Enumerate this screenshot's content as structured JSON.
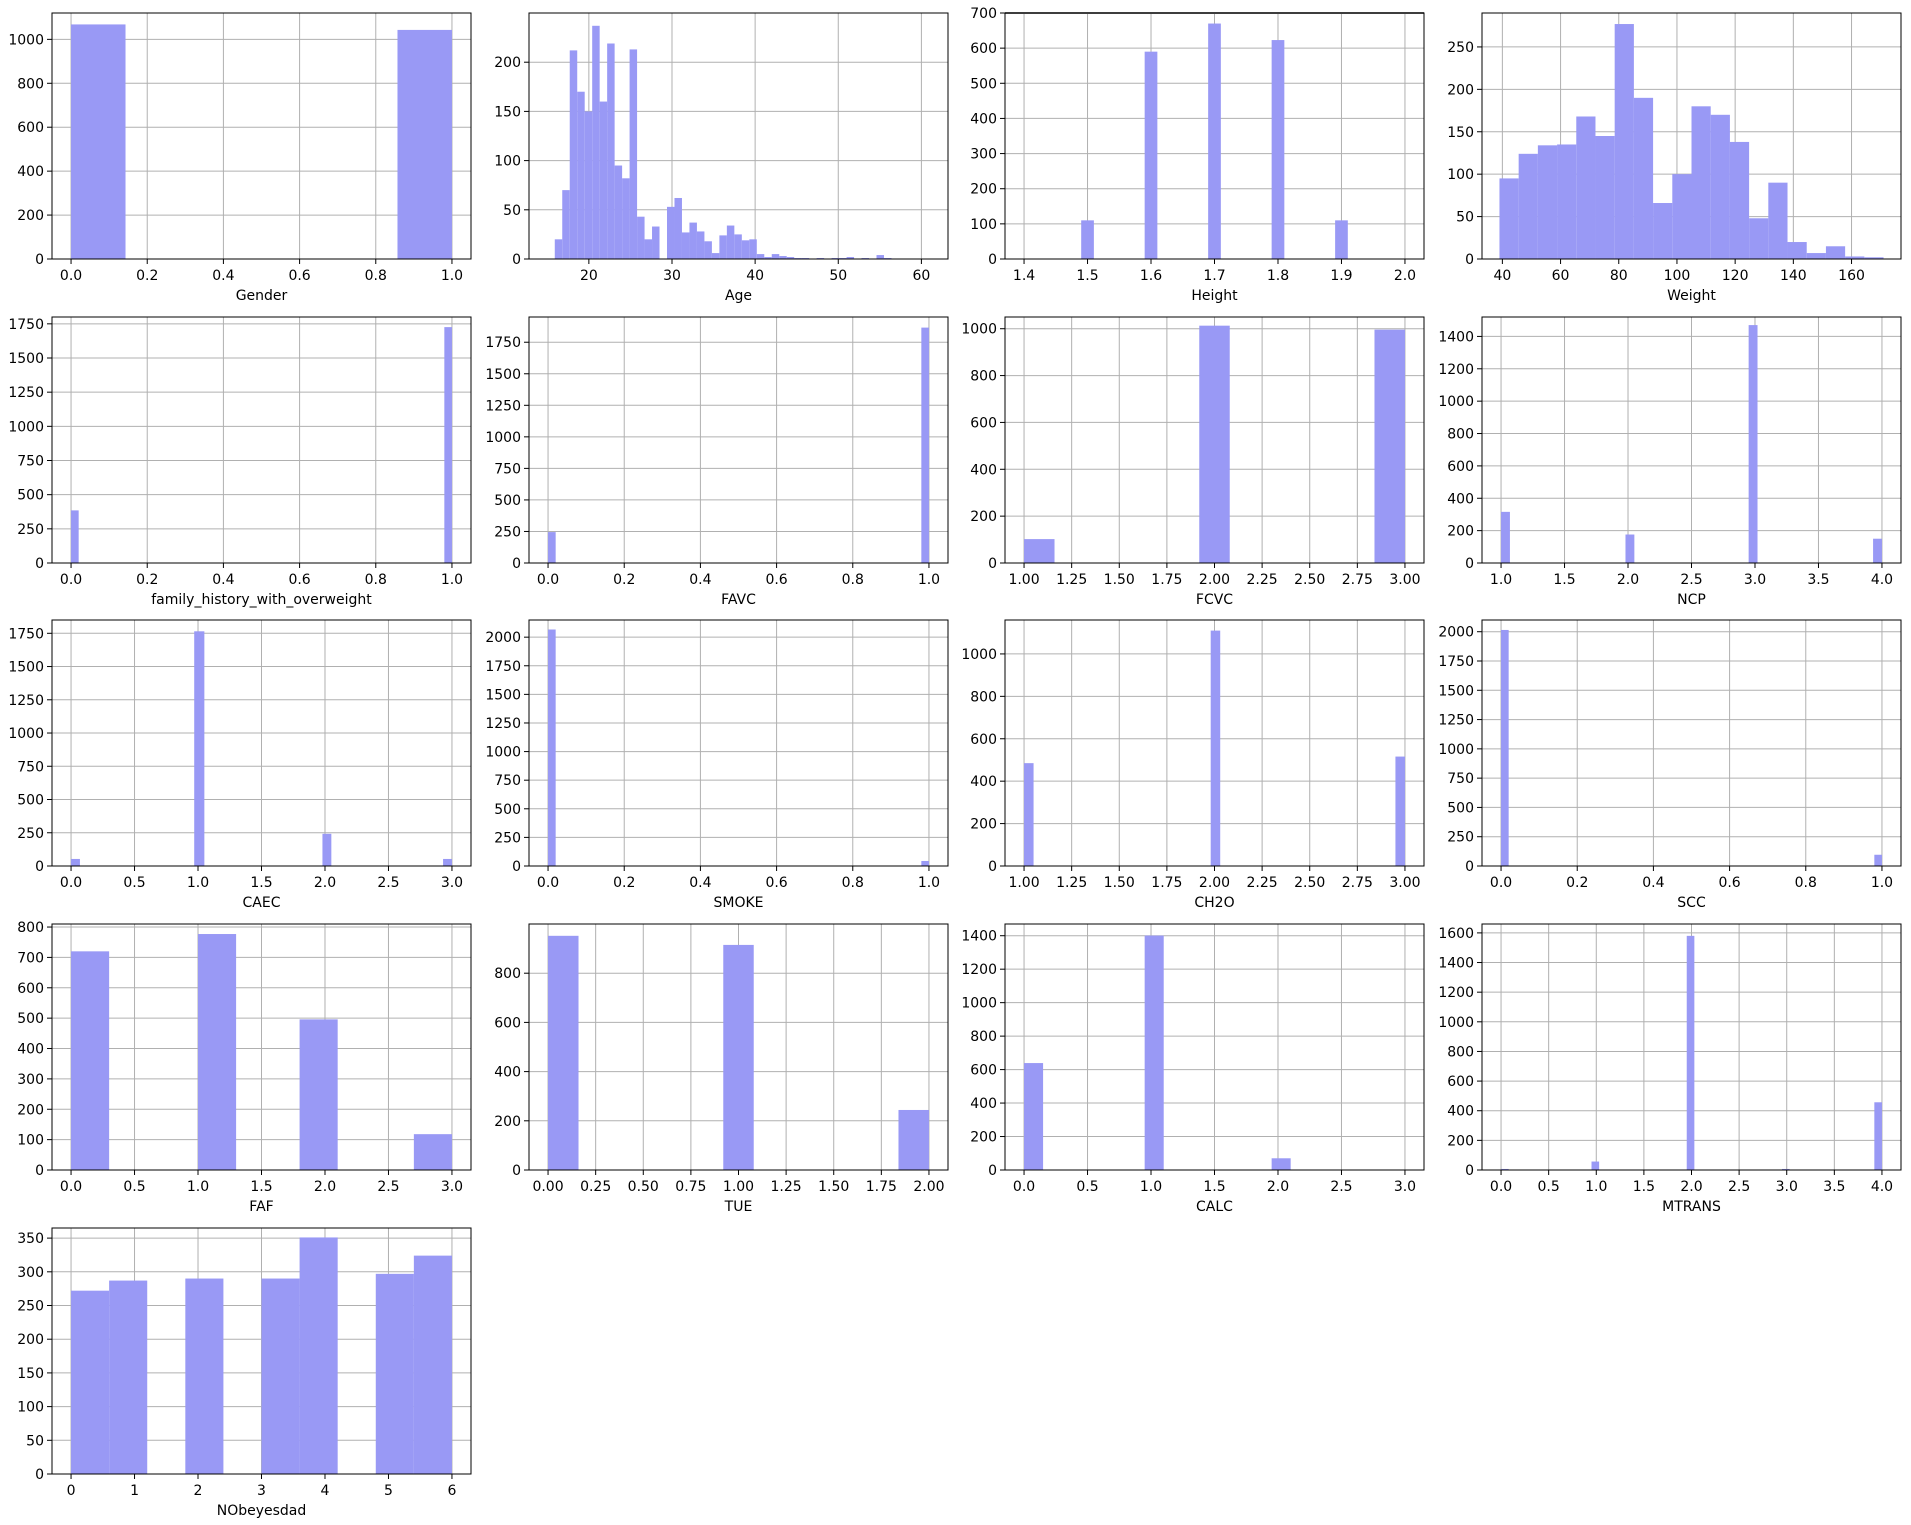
{
  "colors": {
    "bar": "#9999f5",
    "grid": "#b0b0b0"
  },
  "chart_data": [
    {
      "type": "bar",
      "xlabel": "Gender",
      "xlim": [
        -0.05,
        1.05
      ],
      "ylim": [
        0,
        1120
      ],
      "xticks": [
        0,
        0.2,
        0.4,
        0.6,
        0.8,
        1.0
      ],
      "xtick_labels": [
        "0.0",
        "0.2",
        "0.4",
        "0.6",
        "0.8",
        "1.0"
      ],
      "yticks": [
        0,
        200,
        400,
        600,
        800,
        1000
      ],
      "ytick_labels": [
        "0",
        "200",
        "400",
        "600",
        "800",
        "1000"
      ],
      "bins": [
        [
          0.0,
          0.143,
          1068
        ],
        [
          0.857,
          1.0,
          1043
        ]
      ]
    },
    {
      "type": "bar",
      "xlabel": "Age",
      "xlim": [
        12.8,
        63.2
      ],
      "ylim": [
        0,
        250
      ],
      "xticks": [
        20,
        30,
        40,
        50,
        60
      ],
      "xtick_labels": [
        "20",
        "30",
        "40",
        "50",
        "60"
      ],
      "yticks": [
        0,
        50,
        100,
        150,
        200
      ],
      "ytick_labels": [
        "0",
        "50",
        "100",
        "150",
        "200"
      ],
      "bins": [
        [
          15.9,
          16.8,
          20
        ],
        [
          16.8,
          17.7,
          70
        ],
        [
          17.7,
          18.6,
          212
        ],
        [
          18.6,
          19.5,
          170
        ],
        [
          19.5,
          20.4,
          150
        ],
        [
          20.4,
          21.3,
          237
        ],
        [
          21.3,
          22.2,
          160
        ],
        [
          22.2,
          23.1,
          219
        ],
        [
          23.1,
          24.0,
          95
        ],
        [
          24.0,
          24.9,
          82
        ],
        [
          24.9,
          25.8,
          213
        ],
        [
          25.8,
          26.7,
          43
        ],
        [
          26.7,
          27.6,
          20
        ],
        [
          27.6,
          28.5,
          33
        ],
        [
          28.5,
          29.4,
          0
        ],
        [
          29.4,
          30.3,
          53
        ],
        [
          30.3,
          31.2,
          62
        ],
        [
          31.2,
          32.1,
          27
        ],
        [
          32.1,
          33.0,
          37
        ],
        [
          33.0,
          33.9,
          28
        ],
        [
          33.9,
          34.8,
          18
        ],
        [
          34.8,
          35.7,
          6
        ],
        [
          35.7,
          36.6,
          24
        ],
        [
          36.6,
          37.5,
          34
        ],
        [
          37.5,
          38.4,
          25
        ],
        [
          38.4,
          39.3,
          19
        ],
        [
          39.3,
          40.2,
          20
        ],
        [
          40.2,
          41.1,
          5
        ],
        [
          41.1,
          42.0,
          2
        ],
        [
          42.0,
          42.9,
          5
        ],
        [
          42.9,
          43.8,
          3
        ],
        [
          43.8,
          44.7,
          2
        ],
        [
          44.7,
          45.6,
          1
        ],
        [
          45.6,
          46.5,
          1
        ],
        [
          46.5,
          47.4,
          0
        ],
        [
          47.4,
          48.3,
          1
        ],
        [
          48.3,
          49.2,
          0
        ],
        [
          49.2,
          50.1,
          1
        ],
        [
          50.1,
          51.0,
          1
        ],
        [
          51.0,
          51.9,
          2
        ],
        [
          51.9,
          52.8,
          0
        ],
        [
          52.8,
          53.7,
          1
        ],
        [
          53.7,
          54.6,
          0
        ],
        [
          54.6,
          55.5,
          4
        ],
        [
          55.5,
          56.4,
          1
        ]
      ]
    },
    {
      "type": "bar",
      "xlabel": "Height",
      "xlim": [
        1.37,
        2.03
      ],
      "ylim": [
        0,
        700
      ],
      "xticks": [
        1.4,
        1.5,
        1.6,
        1.7,
        1.8,
        1.9,
        2.0
      ],
      "xtick_labels": [
        "1.4",
        "1.5",
        "1.6",
        "1.7",
        "1.8",
        "1.9",
        "2.0"
      ],
      "yticks": [
        0,
        100,
        200,
        300,
        400,
        500,
        600,
        700
      ],
      "ytick_labels": [
        "0",
        "100",
        "200",
        "300",
        "400",
        "500",
        "600",
        "700"
      ],
      "bins": [
        [
          1.49,
          1.51,
          110
        ],
        [
          1.59,
          1.61,
          590
        ],
        [
          1.69,
          1.71,
          670
        ],
        [
          1.79,
          1.81,
          623
        ],
        [
          1.89,
          1.91,
          110
        ]
      ],
      "top_line": 700
    },
    {
      "type": "bar",
      "xlabel": "Weight",
      "xlim": [
        33,
        177
      ],
      "ylim": [
        0,
        290
      ],
      "xticks": [
        40,
        60,
        80,
        100,
        120,
        140,
        160
      ],
      "xtick_labels": [
        "40",
        "60",
        "80",
        "100",
        "120",
        "140",
        "160"
      ],
      "yticks": [
        0,
        50,
        100,
        150,
        200,
        250
      ],
      "ytick_labels": [
        "0",
        "50",
        "100",
        "150",
        "200",
        "250"
      ],
      "bins": [
        [
          39,
          45.6,
          95
        ],
        [
          45.6,
          52.2,
          124
        ],
        [
          52.2,
          58.8,
          134
        ],
        [
          58.8,
          65.4,
          135
        ],
        [
          65.4,
          72.0,
          168
        ],
        [
          72.0,
          78.6,
          145
        ],
        [
          78.6,
          85.2,
          277
        ],
        [
          85.2,
          91.8,
          190
        ],
        [
          91.8,
          98.4,
          66
        ],
        [
          98.4,
          105.0,
          100
        ],
        [
          105.0,
          111.6,
          180
        ],
        [
          111.6,
          118.2,
          170
        ],
        [
          118.2,
          124.8,
          138
        ],
        [
          124.8,
          131.4,
          48
        ],
        [
          131.4,
          138.0,
          90
        ],
        [
          138.0,
          144.6,
          20
        ],
        [
          144.6,
          151.2,
          7
        ],
        [
          151.2,
          157.8,
          15
        ],
        [
          157.8,
          164.4,
          3
        ],
        [
          164.4,
          171.0,
          2
        ]
      ]
    },
    {
      "type": "bar",
      "xlabel": "family_history_with_overweight",
      "xlim": [
        -0.05,
        1.05
      ],
      "ylim": [
        0,
        1800
      ],
      "xticks": [
        0,
        0.2,
        0.4,
        0.6,
        0.8,
        1.0
      ],
      "xtick_labels": [
        "0.0",
        "0.2",
        "0.4",
        "0.6",
        "0.8",
        "1.0"
      ],
      "yticks": [
        0,
        250,
        500,
        750,
        1000,
        1250,
        1500,
        1750
      ],
      "ytick_labels": [
        "0",
        "250",
        "500",
        "750",
        "1000",
        "1250",
        "1500",
        "1750"
      ],
      "bins": [
        [
          0.0,
          0.02,
          385
        ],
        [
          0.98,
          1.0,
          1726
        ]
      ]
    },
    {
      "type": "bar",
      "xlabel": "FAVC",
      "xlim": [
        -0.05,
        1.05
      ],
      "ylim": [
        0,
        1950
      ],
      "xticks": [
        0,
        0.2,
        0.4,
        0.6,
        0.8,
        1.0
      ],
      "xtick_labels": [
        "0.0",
        "0.2",
        "0.4",
        "0.6",
        "0.8",
        "1.0"
      ],
      "yticks": [
        0,
        250,
        500,
        750,
        1000,
        1250,
        1500,
        1750
      ],
      "ytick_labels": [
        "0",
        "250",
        "500",
        "750",
        "1000",
        "1250",
        "1500",
        "1750"
      ],
      "bins": [
        [
          0.0,
          0.02,
          245
        ],
        [
          0.98,
          1.0,
          1866
        ]
      ]
    },
    {
      "type": "bar",
      "xlabel": "FCVC",
      "xlim": [
        0.9,
        3.1
      ],
      "ylim": [
        0,
        1050
      ],
      "xticks": [
        1.0,
        1.25,
        1.5,
        1.75,
        2.0,
        2.25,
        2.5,
        2.75,
        3.0
      ],
      "xtick_labels": [
        "1.00",
        "1.25",
        "1.50",
        "1.75",
        "2.00",
        "2.25",
        "2.50",
        "2.75",
        "3.00"
      ],
      "yticks": [
        0,
        200,
        400,
        600,
        800,
        1000
      ],
      "ytick_labels": [
        "0",
        "200",
        "400",
        "600",
        "800",
        "1000"
      ],
      "bins": [
        [
          1.0,
          1.16,
          102
        ],
        [
          1.92,
          2.08,
          1013
        ],
        [
          2.84,
          3.0,
          996
        ]
      ]
    },
    {
      "type": "bar",
      "xlabel": "NCP",
      "xlim": [
        0.85,
        4.15
      ],
      "ylim": [
        0,
        1520
      ],
      "xticks": [
        1.0,
        1.5,
        2.0,
        2.5,
        3.0,
        3.5,
        4.0
      ],
      "xtick_labels": [
        "1.0",
        "1.5",
        "2.0",
        "2.5",
        "3.0",
        "3.5",
        "4.0"
      ],
      "yticks": [
        0,
        200,
        400,
        600,
        800,
        1000,
        1200,
        1400
      ],
      "ytick_labels": [
        "0",
        "200",
        "400",
        "600",
        "800",
        "1000",
        "1200",
        "1400"
      ],
      "bins": [
        [
          1.0,
          1.07,
          316
        ],
        [
          1.98,
          2.05,
          176
        ],
        [
          2.95,
          3.02,
          1470
        ],
        [
          3.93,
          4.0,
          150
        ]
      ]
    },
    {
      "type": "bar",
      "xlabel": "CAEC",
      "xlim": [
        -0.15,
        3.15
      ],
      "ylim": [
        0,
        1850
      ],
      "xticks": [
        0,
        0.5,
        1.0,
        1.5,
        2.0,
        2.5,
        3.0
      ],
      "xtick_labels": [
        "0.0",
        "0.5",
        "1.0",
        "1.5",
        "2.0",
        "2.5",
        "3.0"
      ],
      "yticks": [
        0,
        250,
        500,
        750,
        1000,
        1250,
        1500,
        1750
      ],
      "ytick_labels": [
        "0",
        "250",
        "500",
        "750",
        "1000",
        "1250",
        "1500",
        "1750"
      ],
      "bins": [
        [
          0.0,
          0.07,
          53
        ],
        [
          0.97,
          1.05,
          1765
        ],
        [
          1.98,
          2.05,
          242
        ],
        [
          2.93,
          3.0,
          53
        ]
      ]
    },
    {
      "type": "bar",
      "xlabel": "SMOKE",
      "xlim": [
        -0.05,
        1.05
      ],
      "ylim": [
        0,
        2150
      ],
      "xticks": [
        0,
        0.2,
        0.4,
        0.6,
        0.8,
        1.0
      ],
      "xtick_labels": [
        "0.0",
        "0.2",
        "0.4",
        "0.6",
        "0.8",
        "1.0"
      ],
      "yticks": [
        0,
        250,
        500,
        750,
        1000,
        1250,
        1500,
        1750,
        2000
      ],
      "ytick_labels": [
        "0",
        "250",
        "500",
        "750",
        "1000",
        "1250",
        "1500",
        "1750",
        "2000"
      ],
      "bins": [
        [
          0.0,
          0.02,
          2067
        ],
        [
          0.98,
          1.0,
          44
        ]
      ]
    },
    {
      "type": "bar",
      "xlabel": "CH2O",
      "xlim": [
        0.9,
        3.1
      ],
      "ylim": [
        0,
        1160
      ],
      "xticks": [
        1.0,
        1.25,
        1.5,
        1.75,
        2.0,
        2.25,
        2.5,
        2.75,
        3.0
      ],
      "xtick_labels": [
        "1.00",
        "1.25",
        "1.50",
        "1.75",
        "2.00",
        "2.25",
        "2.50",
        "2.75",
        "3.00"
      ],
      "yticks": [
        0,
        200,
        400,
        600,
        800,
        1000
      ],
      "ytick_labels": [
        "0",
        "200",
        "400",
        "600",
        "800",
        "1000"
      ],
      "bins": [
        [
          1.0,
          1.05,
          485
        ],
        [
          1.98,
          2.03,
          1110
        ],
        [
          2.95,
          3.0,
          516
        ]
      ]
    },
    {
      "type": "bar",
      "xlabel": "SCC",
      "xlim": [
        -0.05,
        1.05
      ],
      "ylim": [
        0,
        2100
      ],
      "xticks": [
        0,
        0.2,
        0.4,
        0.6,
        0.8,
        1.0
      ],
      "xtick_labels": [
        "0.0",
        "0.2",
        "0.4",
        "0.6",
        "0.8",
        "1.0"
      ],
      "yticks": [
        0,
        250,
        500,
        750,
        1000,
        1250,
        1500,
        1750,
        2000
      ],
      "ytick_labels": [
        "0",
        "250",
        "500",
        "750",
        "1000",
        "1250",
        "1500",
        "1750",
        "2000"
      ],
      "bins": [
        [
          0.0,
          0.02,
          2015
        ],
        [
          0.98,
          1.0,
          96
        ]
      ]
    },
    {
      "type": "bar",
      "xlabel": "FAF",
      "xlim": [
        -0.15,
        3.15
      ],
      "ylim": [
        0,
        810
      ],
      "xticks": [
        0,
        0.5,
        1.0,
        1.5,
        2.0,
        2.5,
        3.0
      ],
      "xtick_labels": [
        "0.0",
        "0.5",
        "1.0",
        "1.5",
        "2.0",
        "2.5",
        "3.0"
      ],
      "yticks": [
        0,
        100,
        200,
        300,
        400,
        500,
        600,
        700,
        800
      ],
      "ytick_labels": [
        "0",
        "100",
        "200",
        "300",
        "400",
        "500",
        "600",
        "700",
        "800"
      ],
      "bins": [
        [
          0.0,
          0.3,
          720
        ],
        [
          1.0,
          1.3,
          777
        ],
        [
          1.8,
          2.1,
          496
        ],
        [
          2.7,
          3.0,
          118
        ]
      ]
    },
    {
      "type": "bar",
      "xlabel": "TUE",
      "xlim": [
        -0.1,
        2.1
      ],
      "ylim": [
        0,
        1000
      ],
      "xticks": [
        0,
        0.25,
        0.5,
        0.75,
        1.0,
        1.25,
        1.5,
        1.75,
        2.0
      ],
      "xtick_labels": [
        "0.00",
        "0.25",
        "0.50",
        "0.75",
        "1.00",
        "1.25",
        "1.50",
        "1.75",
        "2.00"
      ],
      "yticks": [
        0,
        200,
        400,
        600,
        800
      ],
      "ytick_labels": [
        "0",
        "200",
        "400",
        "600",
        "800"
      ],
      "bins": [
        [
          0.0,
          0.16,
          952
        ],
        [
          0.92,
          1.08,
          915
        ],
        [
          1.84,
          2.0,
          244
        ]
      ]
    },
    {
      "type": "bar",
      "xlabel": "CALC",
      "xlim": [
        -0.15,
        3.15
      ],
      "ylim": [
        0,
        1470
      ],
      "xticks": [
        0,
        0.5,
        1.0,
        1.5,
        2.0,
        2.5,
        3.0
      ],
      "xtick_labels": [
        "0.0",
        "0.5",
        "1.0",
        "1.5",
        "2.0",
        "2.5",
        "3.0"
      ],
      "yticks": [
        0,
        200,
        400,
        600,
        800,
        1000,
        1200,
        1400
      ],
      "ytick_labels": [
        "0",
        "200",
        "400",
        "600",
        "800",
        "1000",
        "1200",
        "1400"
      ],
      "bins": [
        [
          0.0,
          0.15,
          639
        ],
        [
          0.95,
          1.1,
          1401
        ],
        [
          1.95,
          2.1,
          70
        ],
        [
          2.85,
          3.0,
          1
        ]
      ]
    },
    {
      "type": "bar",
      "xlabel": "MTRANS",
      "xlim": [
        -0.2,
        4.2
      ],
      "ylim": [
        0,
        1660
      ],
      "xticks": [
        0,
        0.5,
        1.0,
        1.5,
        2.0,
        2.5,
        3.0,
        3.5,
        4.0
      ],
      "xtick_labels": [
        "0.0",
        "0.5",
        "1.0",
        "1.5",
        "2.0",
        "2.5",
        "3.0",
        "3.5",
        "4.0"
      ],
      "yticks": [
        0,
        200,
        400,
        600,
        800,
        1000,
        1200,
        1400,
        1600
      ],
      "ytick_labels": [
        "0",
        "200",
        "400",
        "600",
        "800",
        "1000",
        "1200",
        "1400",
        "1600"
      ],
      "bins": [
        [
          0.0,
          0.08,
          7
        ],
        [
          0.95,
          1.03,
          57
        ],
        [
          1.95,
          2.03,
          1580
        ],
        [
          2.95,
          3.03,
          7
        ],
        [
          3.92,
          4.0,
          457
        ]
      ]
    },
    {
      "type": "bar",
      "xlabel": "NObeyesdad",
      "xlim": [
        -0.3,
        6.3
      ],
      "ylim": [
        0,
        365
      ],
      "xticks": [
        0,
        1,
        2,
        3,
        4,
        5,
        6
      ],
      "xtick_labels": [
        "0",
        "1",
        "2",
        "3",
        "4",
        "5",
        "6"
      ],
      "yticks": [
        0,
        50,
        100,
        150,
        200,
        250,
        300,
        350
      ],
      "ytick_labels": [
        "0",
        "50",
        "100",
        "150",
        "200",
        "250",
        "300",
        "350"
      ],
      "bins": [
        [
          0.0,
          0.6,
          272
        ],
        [
          0.6,
          1.2,
          287
        ],
        [
          1.8,
          2.4,
          290
        ],
        [
          3.0,
          3.6,
          290
        ],
        [
          3.6,
          4.2,
          351
        ],
        [
          4.8,
          5.4,
          297
        ],
        [
          5.4,
          6.0,
          324
        ]
      ]
    }
  ]
}
